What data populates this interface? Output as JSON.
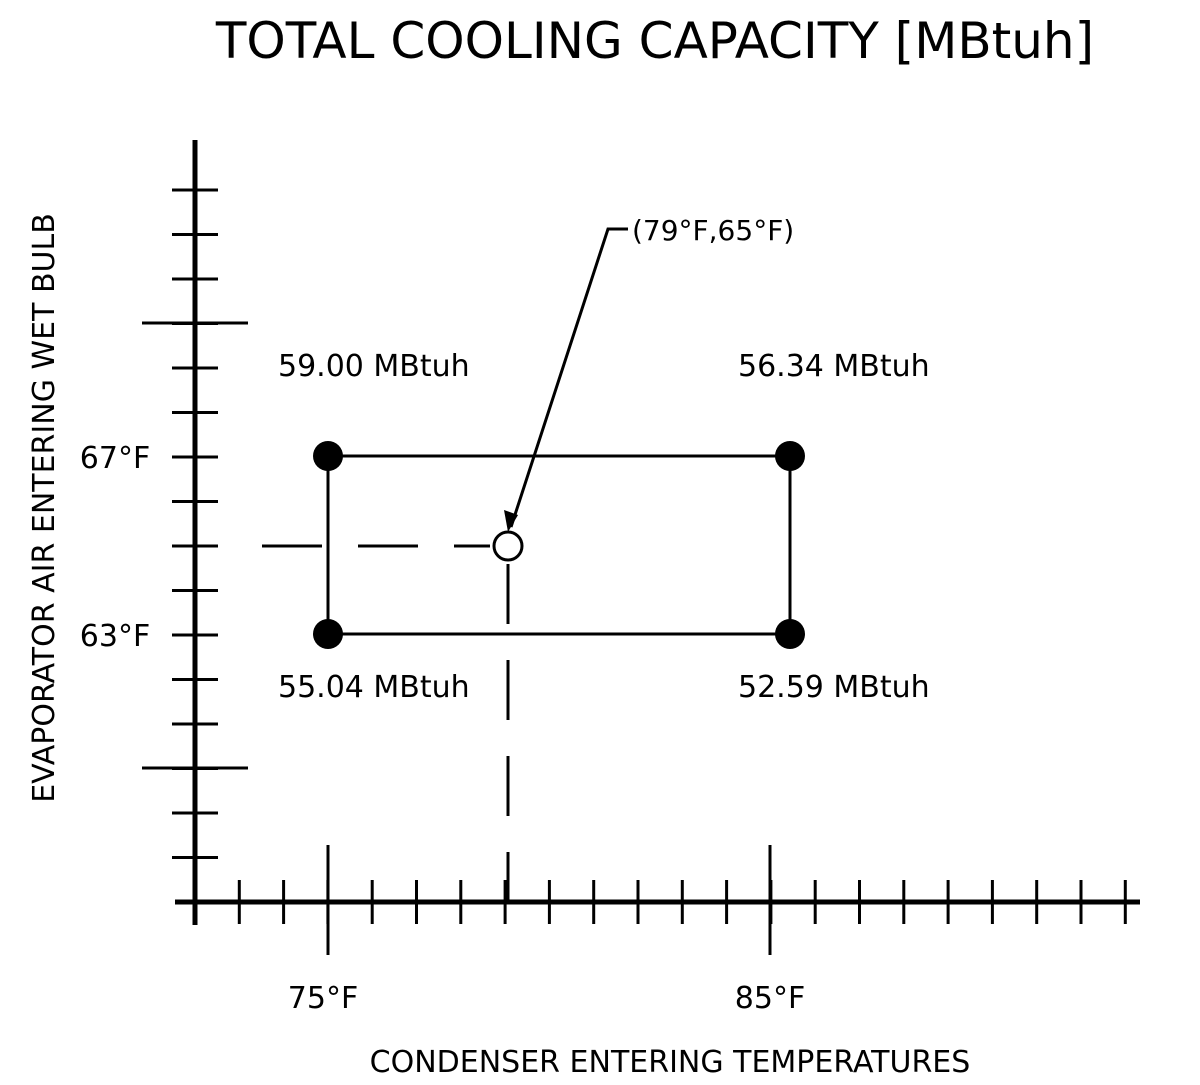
{
  "title": "TOTAL COOLING CAPACITY [MBtuh]",
  "x_axis": {
    "label": "CONDENSER ENTERING TEMPERATURES",
    "tick_labels": [
      "75°F",
      "85°F"
    ]
  },
  "y_axis": {
    "label": "EVAPORATOR AIR ENTERING WET BULB",
    "tick_labels": [
      "67°F",
      "63°F"
    ]
  },
  "corner_values": {
    "top_left": "59.00 MBtuh",
    "top_right": "56.34 MBtuh",
    "bottom_left": "55.04 MBtuh",
    "bottom_right": "52.59 MBtuh"
  },
  "interpolation_point": {
    "label": "(79°F,65°F)",
    "condenser_temp_f": 79,
    "wet_bulb_f": 65
  }
}
